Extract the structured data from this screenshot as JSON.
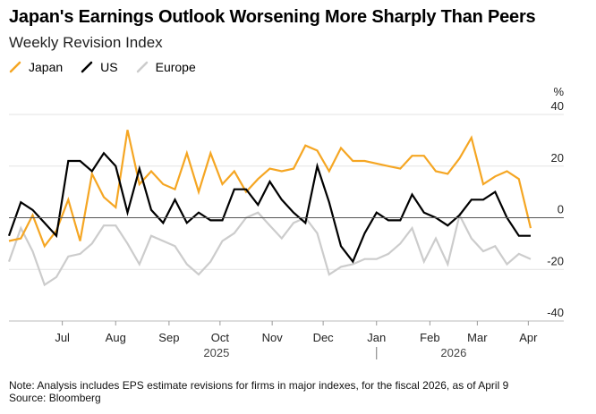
{
  "chart_data": {
    "type": "line",
    "title": "Japan's Earnings Outlook Worsening More Sharply Than Peers",
    "subtitle": "Weekly Revision Index",
    "y_unit": "%",
    "ylim": [
      -40,
      40
    ],
    "y_ticks": [
      40,
      20,
      0,
      -20,
      -40
    ],
    "y_tick_labels": [
      "40",
      "20",
      "0",
      "-20",
      "-40"
    ],
    "x_range": [
      0,
      44.5
    ],
    "months": [
      {
        "label": "Jul",
        "x": 4.5
      },
      {
        "label": "Aug",
        "x": 9.0
      },
      {
        "label": "Sep",
        "x": 13.5
      },
      {
        "label": "Oct",
        "x": 17.8
      },
      {
        "label": "Nov",
        "x": 22.2
      },
      {
        "label": "Dec",
        "x": 26.5
      },
      {
        "label": "Jan",
        "x": 31.0
      },
      {
        "label": "Feb",
        "x": 35.5
      },
      {
        "label": "Mar",
        "x": 39.5
      },
      {
        "label": "Apr",
        "x": 43.8
      }
    ],
    "years": [
      {
        "label": "2025",
        "x": 17.5
      },
      {
        "label": "2026",
        "x": 37.5
      }
    ],
    "year_divider_x": 31.0,
    "series": [
      {
        "name": "Japan",
        "color": "#f5a623",
        "x": [
          0,
          1,
          2,
          3,
          4,
          5,
          6,
          7,
          8,
          9,
          10,
          11,
          12,
          13,
          14,
          15,
          16,
          17,
          18,
          19,
          20,
          21,
          22,
          23,
          24,
          25,
          26,
          27,
          28,
          29,
          30,
          31,
          32,
          33,
          34,
          35,
          36,
          37,
          38,
          39,
          40,
          41,
          42,
          43,
          44
        ],
        "values": [
          -9,
          -8,
          1,
          -11,
          -5,
          7,
          -9,
          17,
          8,
          4,
          34,
          13,
          18,
          13,
          11,
          25,
          10,
          25,
          13,
          18,
          10,
          15,
          19,
          18,
          19,
          28,
          26,
          18,
          27,
          22,
          22,
          21,
          20,
          19,
          24,
          24,
          18,
          17,
          23,
          31,
          13,
          16,
          18,
          15,
          -4
        ]
      },
      {
        "name": "US",
        "color": "#000000",
        "x": [
          0,
          1,
          2,
          3,
          4,
          5,
          6,
          7,
          8,
          9,
          10,
          11,
          12,
          13,
          14,
          15,
          16,
          17,
          18,
          19,
          20,
          21,
          22,
          23,
          24,
          25,
          26,
          27,
          28,
          29,
          30,
          31,
          32,
          33,
          34,
          35,
          36,
          37,
          38,
          39,
          40,
          41,
          42,
          43,
          44
        ],
        "values": [
          -7,
          6,
          3,
          -2,
          -7,
          22,
          22,
          18,
          25,
          20,
          2,
          19,
          3,
          -2,
          7,
          -2,
          2,
          -1,
          -1,
          11,
          11,
          5,
          14,
          7,
          2,
          -2,
          20,
          6,
          -11,
          -17,
          -6,
          2,
          -1,
          -1,
          9,
          2,
          0,
          -3,
          1,
          7,
          7,
          10,
          0,
          -7,
          -7
        ]
      },
      {
        "name": "Europe",
        "color": "#cccccc",
        "x": [
          0,
          1,
          2,
          3,
          4,
          5,
          6,
          7,
          8,
          9,
          10,
          11,
          12,
          13,
          14,
          15,
          16,
          17,
          18,
          19,
          20,
          21,
          22,
          23,
          24,
          25,
          26,
          27,
          28,
          29,
          30,
          31,
          32,
          33,
          34,
          35,
          36,
          37,
          38,
          39,
          40,
          41,
          42,
          43,
          44
        ],
        "values": [
          -17,
          -4,
          -13,
          -26,
          -23,
          -15,
          -14,
          -10,
          -3,
          -3,
          -10,
          -18,
          -7,
          -9,
          -11,
          -18,
          -22,
          -17,
          -9,
          -6,
          0,
          2,
          -3,
          -8,
          -2,
          0,
          -6,
          -22,
          -19,
          -18,
          -16,
          -16,
          -14,
          -10,
          -4,
          -17,
          -8,
          -18,
          1,
          -8,
          -13,
          -11,
          -18,
          -14,
          -16
        ]
      }
    ],
    "legend": [
      "Japan",
      "US",
      "Europe"
    ],
    "legend_position": "top-left",
    "grid": true
  },
  "note": "Note: Analysis includes EPS estimate revisions for firms in major indexes, for the fiscal 2026, as of April 9",
  "source": "Source: Bloomberg"
}
